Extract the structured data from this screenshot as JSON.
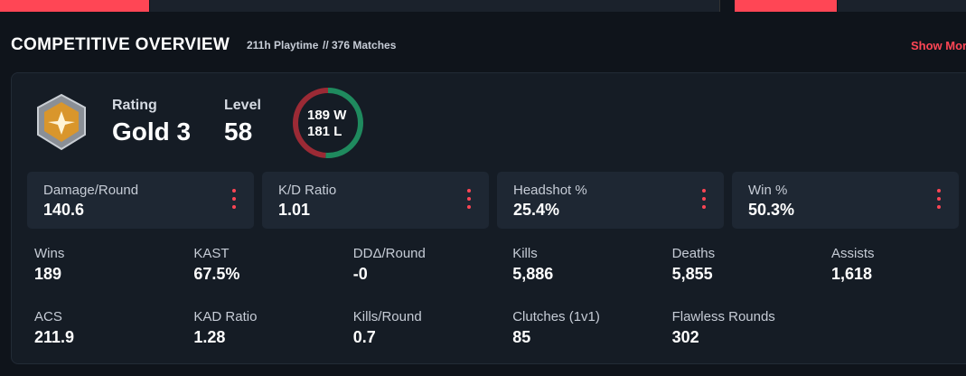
{
  "header": {
    "title": "COMPETITIVE OVERVIEW",
    "playtime": "211h Playtime",
    "matches": "// 376 Matches",
    "show_more": "Show More"
  },
  "profile": {
    "rating_label": "Rating",
    "rating": "Gold 3",
    "level_label": "Level",
    "level": "58",
    "record": {
      "wins": 189,
      "wins_label": "W",
      "losses": 181,
      "losses_label": "L",
      "wins_color": "#1f8a5e",
      "losses_color": "#9b2a35"
    }
  },
  "tiles": [
    {
      "label": "Damage/Round",
      "value": "140.6"
    },
    {
      "label": "K/D Ratio",
      "value": "1.01"
    },
    {
      "label": "Headshot %",
      "value": "25.4%"
    },
    {
      "label": "Win %",
      "value": "50.3%"
    }
  ],
  "stats": [
    {
      "label": "Wins",
      "value": "189"
    },
    {
      "label": "KAST",
      "value": "67.5%"
    },
    {
      "label": "DDΔ/Round",
      "value": "-0"
    },
    {
      "label": "Kills",
      "value": "5,886"
    },
    {
      "label": "Deaths",
      "value": "5,855"
    },
    {
      "label": "Assists",
      "value": "1,618"
    },
    {
      "label": "ACS",
      "value": "211.9"
    },
    {
      "label": "KAD Ratio",
      "value": "1.28"
    },
    {
      "label": "Kills/Round",
      "value": "0.7"
    },
    {
      "label": "Clutches (1v1)",
      "value": "85"
    },
    {
      "label": "Flawless Rounds",
      "value": "302"
    }
  ]
}
